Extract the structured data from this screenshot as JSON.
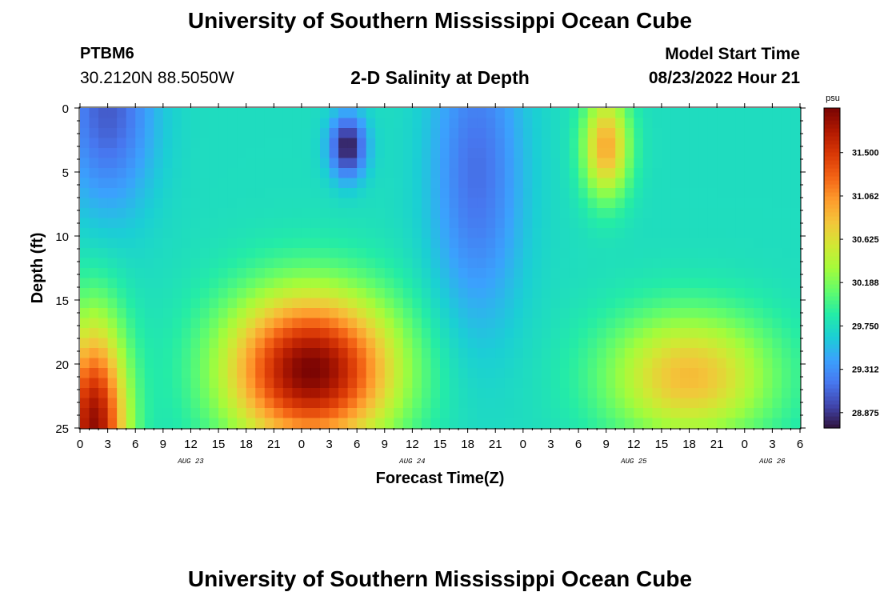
{
  "header": {
    "title": "University of Southern Mississippi Ocean Cube",
    "station_id": "PTBM6",
    "coordinates": "30.2120N  88.5050W",
    "subtitle": "2-D Salinity at Depth",
    "model_start_label": "Model Start Time",
    "model_start_value": "08/23/2022 Hour 21"
  },
  "footer": {
    "title": "University of Southern Mississippi Ocean Cube"
  },
  "colors": {
    "colormap": [
      "#30123b",
      "#4146ad",
      "#4777ef",
      "#3ba1fd",
      "#1bcfd4",
      "#24eca6",
      "#61fc6c",
      "#a4fc3b",
      "#d1e834",
      "#f3c63a",
      "#fe9b2d",
      "#f36315",
      "#d93806",
      "#b11901",
      "#7a0403"
    ]
  },
  "chart_data": {
    "type": "heatmap",
    "title": "2-D Salinity at Depth",
    "xlabel": "Forecast Time(Z)",
    "ylabel": "Depth (ft)",
    "xlim": [
      0,
      78
    ],
    "ylim": [
      0,
      25
    ],
    "x_ticks": [
      0,
      3,
      6,
      9,
      12,
      15,
      18,
      21,
      24,
      27,
      30,
      33,
      36,
      39,
      42,
      45,
      48,
      51,
      54,
      57,
      60,
      63,
      66,
      69,
      72,
      75,
      78
    ],
    "x_tick_labels": [
      "0",
      "3",
      "6",
      "9",
      "12",
      "15",
      "18",
      "21",
      "0",
      "3",
      "6",
      "9",
      "12",
      "15",
      "18",
      "21",
      "0",
      "3",
      "6",
      "9",
      "12",
      "15",
      "18",
      "21",
      "0",
      "3",
      "6"
    ],
    "date_labels": [
      {
        "x": 12,
        "text": "AUG 23"
      },
      {
        "x": 36,
        "text": "AUG 24"
      },
      {
        "x": 60,
        "text": "AUG 25"
      },
      {
        "x": 75,
        "text": "AUG 26"
      }
    ],
    "y_ticks": [
      0,
      5,
      10,
      15,
      20,
      25
    ],
    "y_tick_labels": [
      "0",
      "5",
      "10",
      "15",
      "20",
      "25"
    ],
    "colorbar": {
      "unit": "psu",
      "min": 28.72,
      "max": 31.95,
      "ticks": [
        28.875,
        29.312,
        29.75,
        30.188,
        30.625,
        31.062,
        31.5
      ],
      "tick_labels": [
        "28.875",
        "29.312",
        "29.750",
        "30.188",
        "30.625",
        "31.062",
        "31.500"
      ]
    },
    "features": [
      {
        "x": 1.5,
        "depth": 25,
        "sx": 3.5,
        "sy": 8,
        "amp": 2.1,
        "note": "high salinity bottom-left"
      },
      {
        "x": 25,
        "depth": 20.5,
        "sx": 9,
        "sy": 6,
        "amp": 2.2,
        "note": "high salinity core Aug 24"
      },
      {
        "x": 29,
        "depth": 3,
        "sx": 2,
        "sy": 2.5,
        "amp": -1.0,
        "note": "fresher pocket near surface"
      },
      {
        "x": 66,
        "depth": 21,
        "sx": 9,
        "sy": 5,
        "amp": 1.1,
        "note": "salty layer Aug 25"
      },
      {
        "x": 57,
        "depth": 3,
        "sx": 2.5,
        "sy": 4,
        "amp": 1.2,
        "note": "salty surface column Aug 25"
      },
      {
        "x": 3,
        "depth": 0,
        "sx": 5,
        "sy": 8,
        "amp": -0.7,
        "note": "fresh surface Aug 23"
      },
      {
        "x": 43,
        "depth": 5,
        "sx": 5,
        "sy": 12,
        "amp": -0.6,
        "note": "fresh column Aug 24 night"
      }
    ],
    "base_value": 29.75
  }
}
